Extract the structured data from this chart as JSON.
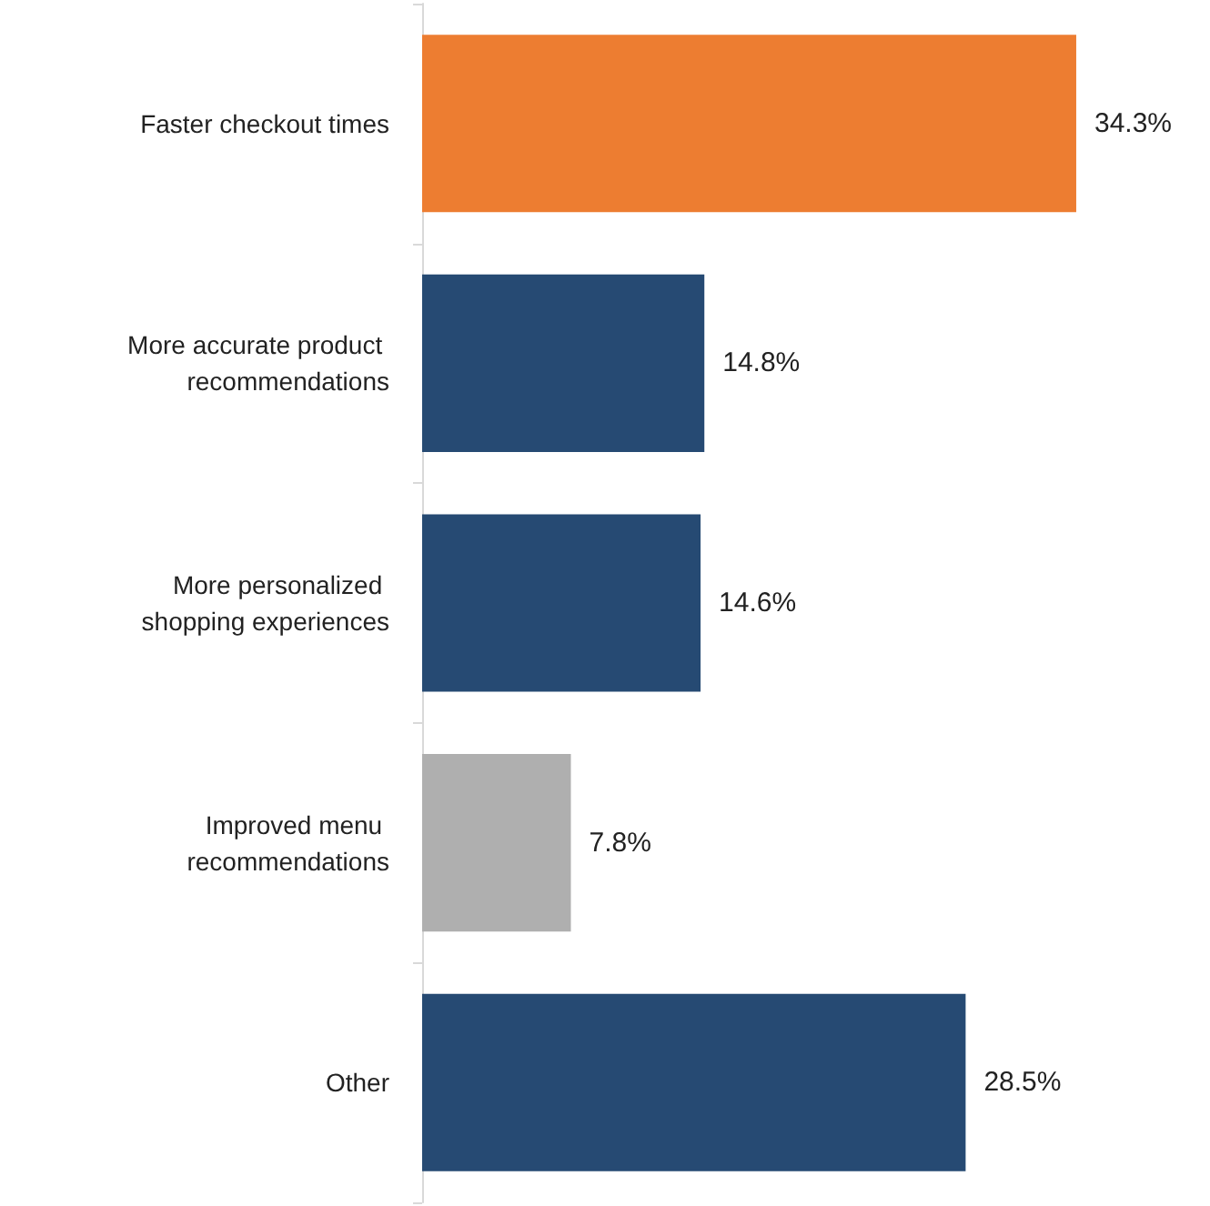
{
  "chart_data": {
    "type": "bar",
    "orientation": "horizontal",
    "categories": [
      "Faster checkout times",
      "More accurate product recommendations",
      "More personalized shopping experiences",
      "Improved menu recommendations",
      "Other"
    ],
    "values": [
      34.3,
      14.8,
      14.6,
      7.8,
      28.5
    ],
    "colors": [
      "#ed7d31",
      "#264a73",
      "#264a73",
      "#afafaf",
      "#264a73"
    ],
    "value_labels": [
      "34.3%",
      "14.8%",
      "14.6%",
      "7.8%",
      "28.5%"
    ]
  }
}
